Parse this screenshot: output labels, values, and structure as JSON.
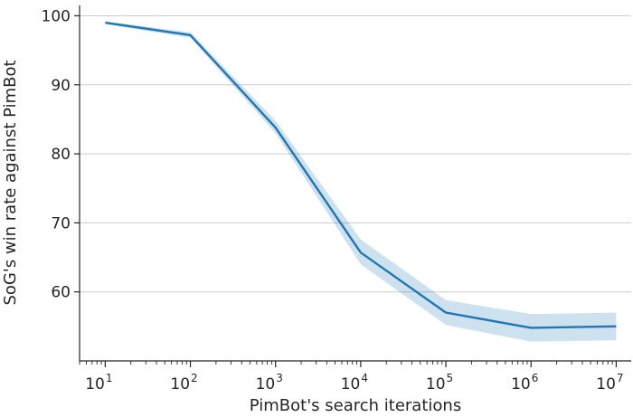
{
  "chart_data": {
    "type": "line",
    "xlabel": "PimBot's search iterations",
    "ylabel": "SoG's win rate against PimBot",
    "x_scale": "log",
    "xlim": [
      5,
      15000000
    ],
    "ylim": [
      50,
      101.5
    ],
    "x_ticks": [
      {
        "base": "10",
        "exp": "1",
        "value": 10
      },
      {
        "base": "10",
        "exp": "2",
        "value": 100
      },
      {
        "base": "10",
        "exp": "3",
        "value": 1000
      },
      {
        "base": "10",
        "exp": "4",
        "value": 10000
      },
      {
        "base": "10",
        "exp": "5",
        "value": 100000
      },
      {
        "base": "10",
        "exp": "6",
        "value": 1000000
      },
      {
        "base": "10",
        "exp": "7",
        "value": 10000000
      }
    ],
    "y_ticks": [
      60,
      70,
      80,
      90,
      100
    ],
    "grid": "horizontal",
    "series": [
      {
        "x": [
          10,
          100,
          1000,
          10000,
          100000,
          1000000,
          10000000
        ],
        "y": [
          99.0,
          97.2,
          83.8,
          65.7,
          57.0,
          54.8,
          55.0
        ],
        "lower": [
          98.8,
          96.8,
          83.0,
          64.0,
          55.2,
          52.8,
          53.0
        ],
        "upper": [
          99.2,
          97.6,
          84.8,
          67.6,
          58.8,
          56.8,
          57.0
        ],
        "color": "#1f77b4",
        "band_color": "#1f77b4"
      }
    ]
  }
}
